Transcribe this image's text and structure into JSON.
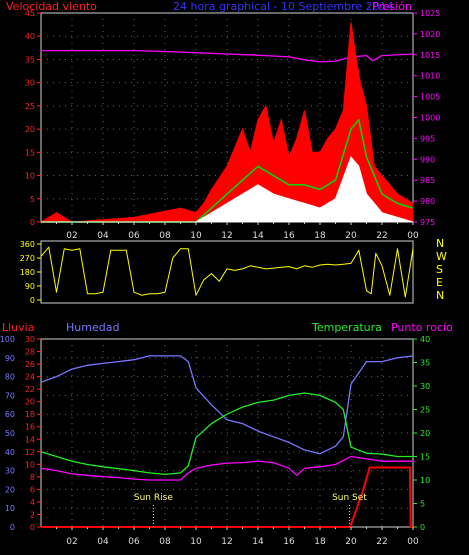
{
  "chart_data": [
    {
      "type": "line",
      "title": "24 hora graphical - 10 Septiembre 2014",
      "left_label": "Velocidad viento",
      "right_label": "Presión",
      "x_ticks": [
        "02",
        "04",
        "06",
        "08",
        "10",
        "12",
        "14",
        "16",
        "18",
        "20",
        "22",
        "00"
      ],
      "left_ticks": [
        "0",
        "5",
        "10",
        "15",
        "20",
        "25",
        "30",
        "35",
        "40",
        "45"
      ],
      "right_ticks": [
        "975",
        "980",
        "985",
        "990",
        "995",
        "1000",
        "1005",
        "1010",
        "1015",
        "1020",
        "1025"
      ],
      "ylim_left": [
        0,
        45
      ],
      "ylim_right": [
        975,
        1025
      ],
      "xlim_hours": [
        0,
        24
      ],
      "grid": true,
      "series": [
        {
          "name": "Presión",
          "axis": "right",
          "color": "#ff00ff",
          "points": [
            [
              0,
              1016
            ],
            [
              2,
              1016
            ],
            [
              4,
              1016
            ],
            [
              6,
              1016
            ],
            [
              8,
              1015.8
            ],
            [
              10,
              1015.5
            ],
            [
              12,
              1015.2
            ],
            [
              14,
              1014.9
            ],
            [
              16,
              1014.5
            ],
            [
              17,
              1013.8
            ],
            [
              18,
              1013.3
            ],
            [
              19,
              1013.5
            ],
            [
              20,
              1014.5
            ],
            [
              21,
              1014.8
            ],
            [
              21.4,
              1013.6
            ],
            [
              22,
              1014.8
            ],
            [
              24,
              1015.2
            ]
          ]
        },
        {
          "name": "gust",
          "axis": "left",
          "color": "#ff0000",
          "points": [
            [
              0,
              0
            ],
            [
              1,
              2
            ],
            [
              2,
              0
            ],
            [
              6,
              1
            ],
            [
              9,
              3
            ],
            [
              10,
              2
            ],
            [
              10.5,
              4
            ],
            [
              11,
              7
            ],
            [
              12,
              12
            ],
            [
              12.5,
              16
            ],
            [
              13,
              20
            ],
            [
              13.5,
              15
            ],
            [
              14,
              22
            ],
            [
              14.5,
              25
            ],
            [
              15,
              17
            ],
            [
              15.5,
              22
            ],
            [
              16,
              14
            ],
            [
              16.5,
              18
            ],
            [
              17,
              24
            ],
            [
              17.5,
              15
            ],
            [
              18,
              15
            ],
            [
              18.5,
              18
            ],
            [
              19,
              20
            ],
            [
              19.5,
              24
            ],
            [
              20,
              43
            ],
            [
              20.3,
              36
            ],
            [
              20.6,
              30
            ],
            [
              21,
              25
            ],
            [
              21.5,
              12
            ],
            [
              22,
              10
            ],
            [
              22.5,
              8
            ],
            [
              23,
              6
            ],
            [
              24,
              4
            ]
          ]
        },
        {
          "name": "average",
          "axis": "left",
          "color": "#00dd00",
          "points": [
            [
              0,
              0
            ],
            [
              10,
              0
            ],
            [
              11,
              3
            ],
            [
              12,
              6
            ],
            [
              13,
              9
            ],
            [
              14,
              12
            ],
            [
              15,
              10
            ],
            [
              16,
              8
            ],
            [
              17,
              8
            ],
            [
              18,
              7
            ],
            [
              19,
              9
            ],
            [
              20,
              20
            ],
            [
              20.5,
              22
            ],
            [
              21,
              14
            ],
            [
              22,
              6
            ],
            [
              23,
              4
            ],
            [
              24,
              3
            ]
          ]
        },
        {
          "name": "lull",
          "axis": "left",
          "color": "#ffffff",
          "points": [
            [
              0,
              0
            ],
            [
              10,
              0
            ],
            [
              11,
              2
            ],
            [
              12,
              4
            ],
            [
              13,
              6
            ],
            [
              14,
              8
            ],
            [
              15,
              6
            ],
            [
              16,
              5
            ],
            [
              17,
              4
            ],
            [
              18,
              3
            ],
            [
              19,
              5
            ],
            [
              20,
              14
            ],
            [
              20.5,
              12
            ],
            [
              21,
              6
            ],
            [
              22,
              2
            ],
            [
              23,
              1
            ],
            [
              24,
              0
            ]
          ]
        }
      ]
    },
    {
      "type": "scatter",
      "ticks": [
        "0",
        "90",
        "180",
        "270",
        "360"
      ],
      "compass_labels": [
        "N",
        "W",
        "S",
        "E",
        "N"
      ],
      "ylim": [
        0,
        360
      ],
      "xlim_hours": [
        0,
        24
      ],
      "color": "#ffff00",
      "points": [
        [
          0,
          280
        ],
        [
          0.5,
          340
        ],
        [
          1,
          50
        ],
        [
          1.5,
          330
        ],
        [
          2,
          320
        ],
        [
          2.5,
          330
        ],
        [
          3,
          40
        ],
        [
          3.5,
          40
        ],
        [
          4,
          50
        ],
        [
          4.5,
          320
        ],
        [
          5,
          320
        ],
        [
          5.5,
          320
        ],
        [
          6,
          50
        ],
        [
          6.5,
          30
        ],
        [
          7,
          40
        ],
        [
          7.5,
          40
        ],
        [
          8,
          50
        ],
        [
          8.5,
          270
        ],
        [
          9,
          330
        ],
        [
          9.5,
          330
        ],
        [
          10,
          30
        ],
        [
          10.5,
          130
        ],
        [
          11,
          170
        ],
        [
          11.5,
          120
        ],
        [
          12,
          200
        ],
        [
          12.5,
          190
        ],
        [
          13,
          200
        ],
        [
          13.5,
          220
        ],
        [
          14,
          210
        ],
        [
          14.5,
          200
        ],
        [
          15,
          205
        ],
        [
          15.5,
          210
        ],
        [
          16,
          215
        ],
        [
          16.5,
          200
        ],
        [
          17,
          220
        ],
        [
          17.5,
          210
        ],
        [
          18,
          225
        ],
        [
          18.5,
          230
        ],
        [
          19,
          225
        ],
        [
          19.5,
          230
        ],
        [
          20,
          235
        ],
        [
          20.5,
          320
        ],
        [
          21,
          60
        ],
        [
          21.3,
          40
        ],
        [
          21.6,
          300
        ],
        [
          22,
          220
        ],
        [
          22.5,
          30
        ],
        [
          23,
          330
        ],
        [
          23.5,
          20
        ],
        [
          24,
          330
        ]
      ]
    },
    {
      "type": "line",
      "left_labels": [
        "Lluvia",
        "Humedad"
      ],
      "right_labels": [
        "Temperatura",
        "Punto rocío"
      ],
      "x_ticks": [
        "02",
        "04",
        "06",
        "08",
        "10",
        "12",
        "14",
        "16",
        "18",
        "20",
        "22",
        "00"
      ],
      "humidity_ticks": [
        "0",
        "10",
        "20",
        "30",
        "40",
        "50",
        "60",
        "70",
        "80",
        "90",
        "100"
      ],
      "rain_ticks": [
        "0",
        "2",
        "4",
        "6",
        "8",
        "10",
        "12",
        "14",
        "16",
        "18",
        "20",
        "22",
        "24",
        "26",
        "28",
        "30"
      ],
      "temp_ticks": [
        "0",
        "5",
        "10",
        "15",
        "20",
        "25",
        "30",
        "35",
        "40"
      ],
      "ylim_humidity": [
        0,
        100
      ],
      "ylim_rain": [
        0,
        30
      ],
      "ylim_temp": [
        0,
        40
      ],
      "xlim_hours": [
        0,
        24
      ],
      "grid": true,
      "markers": [
        {
          "label": "Sun Rise",
          "hour": 7.25
        },
        {
          "label": "Sun Set",
          "hour": 19.9
        }
      ],
      "series": [
        {
          "name": "Humedad",
          "axis": "humidity",
          "color": "#7777ff",
          "points": [
            [
              0,
              77
            ],
            [
              1,
              80
            ],
            [
              2,
              84
            ],
            [
              3,
              86
            ],
            [
              4,
              87
            ],
            [
              5,
              88
            ],
            [
              6,
              89
            ],
            [
              7,
              91
            ],
            [
              8,
              91
            ],
            [
              9,
              91
            ],
            [
              9.5,
              88
            ],
            [
              10,
              74
            ],
            [
              11,
              65
            ],
            [
              12,
              57
            ],
            [
              13,
              55
            ],
            [
              14,
              51
            ],
            [
              15,
              48
            ],
            [
              16,
              45
            ],
            [
              17,
              41
            ],
            [
              18,
              39
            ],
            [
              19,
              43
            ],
            [
              19.5,
              48
            ],
            [
              20,
              76
            ],
            [
              21,
              88
            ],
            [
              22,
              88
            ],
            [
              23,
              90
            ],
            [
              24,
              91
            ]
          ]
        },
        {
          "name": "Temperatura",
          "axis": "temp",
          "color": "#22ee22",
          "points": [
            [
              0,
              16
            ],
            [
              1,
              15
            ],
            [
              2,
              14
            ],
            [
              3,
              13.3
            ],
            [
              4,
              12.8
            ],
            [
              5,
              12.4
            ],
            [
              6,
              12
            ],
            [
              7,
              11.5
            ],
            [
              8,
              11.2
            ],
            [
              9,
              11.5
            ],
            [
              9.5,
              13
            ],
            [
              10,
              19
            ],
            [
              11,
              22
            ],
            [
              12,
              24
            ],
            [
              13,
              25.5
            ],
            [
              14,
              26.5
            ],
            [
              15,
              27
            ],
            [
              16,
              28
            ],
            [
              17,
              28.5
            ],
            [
              18,
              28
            ],
            [
              19,
              26.5
            ],
            [
              19.5,
              25
            ],
            [
              20,
              17
            ],
            [
              21,
              15.7
            ],
            [
              22,
              15.5
            ],
            [
              23,
              15
            ],
            [
              24,
              15
            ]
          ]
        },
        {
          "name": "Punto rocío",
          "axis": "temp",
          "color": "#ff00ff",
          "points": [
            [
              0,
              12.5
            ],
            [
              1,
              12
            ],
            [
              2,
              11.3
            ],
            [
              3,
              11
            ],
            [
              4,
              10.7
            ],
            [
              5,
              10.5
            ],
            [
              6,
              10.2
            ],
            [
              7,
              10
            ],
            [
              8,
              10
            ],
            [
              9,
              10
            ],
            [
              9.5,
              11.5
            ],
            [
              10,
              12.5
            ],
            [
              11,
              13.2
            ],
            [
              12,
              13.6
            ],
            [
              13,
              13.7
            ],
            [
              14,
              14
            ],
            [
              15,
              13.7
            ],
            [
              16,
              12.5
            ],
            [
              16.5,
              11
            ],
            [
              17,
              12.5
            ],
            [
              18,
              12.8
            ],
            [
              19,
              13.3
            ],
            [
              20,
              15
            ],
            [
              21,
              14.5
            ],
            [
              22,
              14
            ],
            [
              23,
              14
            ],
            [
              24,
              14
            ]
          ]
        },
        {
          "name": "Lluvia",
          "axis": "rain",
          "color": "#ff0000",
          "points": [
            [
              0,
              0
            ],
            [
              19.95,
              0
            ],
            [
              20.8,
              6
            ],
            [
              21.2,
              9.5
            ],
            [
              22,
              9.5
            ],
            [
              23,
              9.5
            ],
            [
              23.8,
              9.5
            ],
            [
              23.85,
              0
            ],
            [
              24,
              0
            ]
          ]
        }
      ]
    }
  ]
}
